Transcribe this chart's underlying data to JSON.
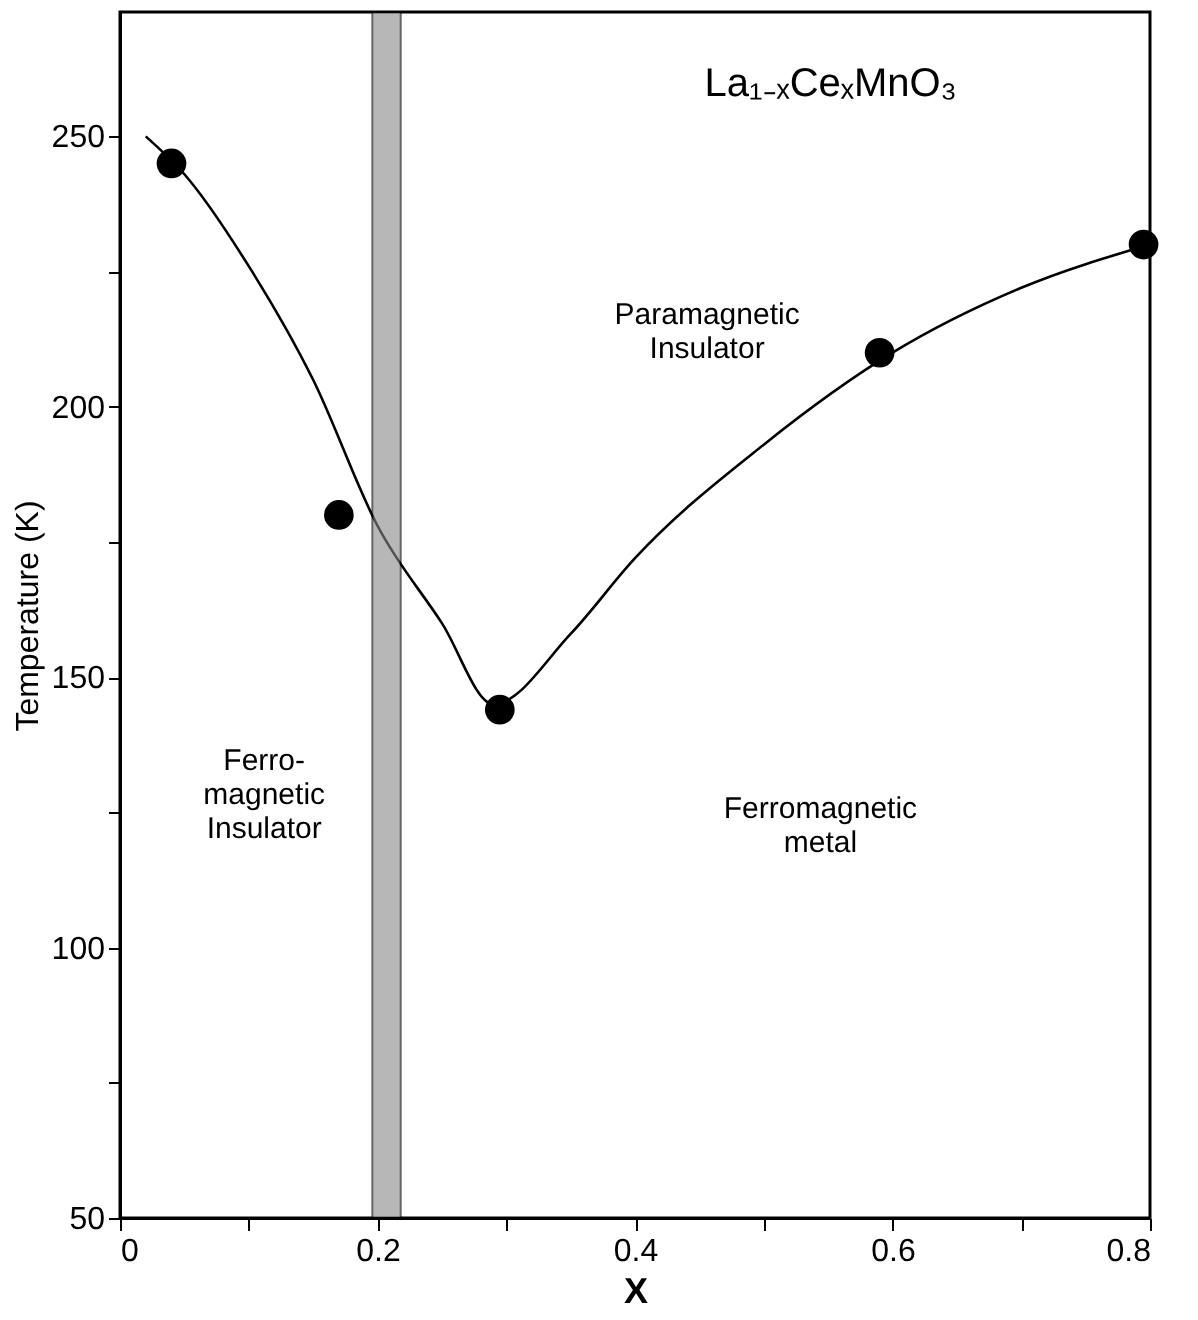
{
  "chart_data": {
    "type": "line",
    "xlabel": "X",
    "ylabel": "Temperature (K)",
    "xlim": [
      0,
      0.8
    ],
    "ylim": [
      50,
      273
    ],
    "xticks": [
      0,
      {
        "value": 0.1,
        "label": null
      },
      0.2,
      {
        "value": 0.3,
        "label": null
      },
      0.4,
      {
        "value": 0.5,
        "label": null
      },
      0.6,
      {
        "value": 0.7,
        "label": null
      },
      0.8
    ],
    "yticks": [
      50,
      {
        "value": 75,
        "label": null
      },
      100,
      {
        "value": 125,
        "label": null
      },
      150,
      {
        "value": 175,
        "label": null
      },
      200,
      {
        "value": 225,
        "label": null
      },
      250
    ],
    "grid": false,
    "series": [
      {
        "type": "line",
        "color": "#000000",
        "line_style": "solid",
        "marker": "none",
        "x": [
          0.02,
          0.05,
          0.1,
          0.15,
          0.2,
          0.25,
          0.29,
          0.35,
          0.4,
          0.5,
          0.6,
          0.7,
          0.8
        ],
        "values": [
          250,
          243,
          226,
          205,
          178,
          160,
          145,
          158,
          172,
          193,
          210,
          222,
          230
        ]
      },
      {
        "type": "scatter",
        "color": "#000000",
        "marker": "circle",
        "x": [
          0.04,
          0.17,
          0.295,
          0.59,
          0.795
        ],
        "values": [
          245,
          180,
          144,
          210,
          230
        ]
      }
    ],
    "bands": [
      {
        "axis": "x",
        "from": 0.196,
        "to": 0.218,
        "color": "#888888"
      }
    ],
    "annotations": [
      "La₁₋ₓCeₓMnO₃",
      "Paramagnetic\nInsulator",
      "Ferro-\nmagnetic\nInsulator",
      "Ferromagnetic\nmetal"
    ]
  }
}
